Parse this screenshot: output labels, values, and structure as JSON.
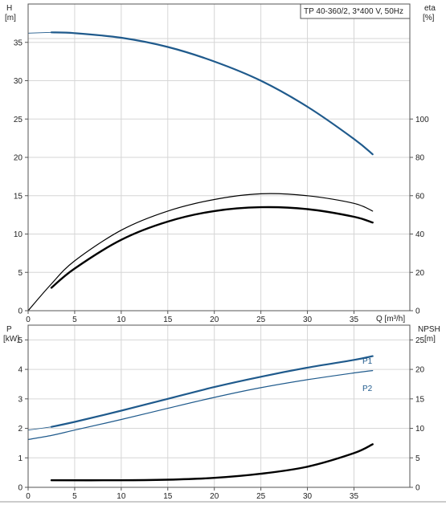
{
  "colors": {
    "blue": "#1f5a8c",
    "black": "#000000",
    "grid": "#d6d6d6",
    "frame": "#555555"
  },
  "title_box": "TP 40-360/2, 3*400 V, 50Hz",
  "chart_data": [
    {
      "type": "line",
      "panel": "top",
      "x_axis": {
        "label": "Q [m³/h]",
        "range": [
          0,
          41
        ],
        "ticks": [
          0,
          5,
          10,
          15,
          20,
          25,
          30,
          35
        ]
      },
      "left_axis": {
        "label_top": "H",
        "label_unit": "[m]",
        "range": [
          0,
          40
        ],
        "ticks": [
          0,
          5,
          10,
          15,
          20,
          25,
          30,
          35
        ]
      },
      "right_axis": {
        "label_top": "eta",
        "label_unit": "[%]",
        "range": [
          0,
          160
        ],
        "ticks": [
          0,
          20,
          40,
          60,
          80,
          100
        ]
      },
      "grid": true,
      "series": [
        {
          "color": "#1f5a8c",
          "width": 2.2,
          "axis": "left",
          "points": [
            [
              2.5,
              36.3
            ],
            [
              5,
              36.2
            ],
            [
              10,
              35.6
            ],
            [
              15,
              34.4
            ],
            [
              20,
              32.5
            ],
            [
              25,
              30.0
            ],
            [
              30,
              26.6
            ],
            [
              35,
              22.4
            ],
            [
              37,
              20.4
            ]
          ]
        },
        {
          "color": "#1f5a8c",
          "width": 0.8,
          "axis": "left",
          "points": [
            [
              0,
              36.2
            ],
            [
              2.5,
              36.3
            ]
          ]
        },
        {
          "color": "#000000",
          "width": 1.2,
          "axis": "right",
          "points": [
            [
              0,
              0
            ],
            [
              2.5,
              14
            ],
            [
              5,
              26
            ],
            [
              10,
              42
            ],
            [
              15,
              52
            ],
            [
              20,
              58
            ],
            [
              25,
              61
            ],
            [
              30,
              60
            ],
            [
              35,
              56
            ],
            [
              37,
              52
            ]
          ]
        },
        {
          "color": "#000000",
          "width": 2.4,
          "axis": "right",
          "points": [
            [
              2.5,
              12
            ],
            [
              5,
              22
            ],
            [
              10,
              37
            ],
            [
              15,
              46.5
            ],
            [
              20,
              52
            ],
            [
              25,
              54
            ],
            [
              30,
              53
            ],
            [
              35,
              49
            ],
            [
              37,
              46
            ]
          ]
        }
      ]
    },
    {
      "type": "line",
      "panel": "bottom",
      "x_axis": {
        "range": [
          0,
          41
        ],
        "ticks": [
          0,
          5,
          10,
          15,
          20,
          25,
          30,
          35
        ]
      },
      "left_axis": {
        "label_top": "P",
        "label_unit": "[kW]",
        "range": [
          0,
          5.5
        ],
        "ticks": [
          0,
          1,
          2,
          3,
          4,
          5
        ]
      },
      "right_axis": {
        "label_top": "NPSH",
        "label_unit": "[m]",
        "range": [
          0,
          27.5
        ],
        "ticks": [
          0,
          5,
          10,
          15,
          20,
          25
        ]
      },
      "grid": true,
      "series": [
        {
          "name": "P1",
          "color": "#1f5a8c",
          "width": 2.2,
          "axis": "left",
          "points": [
            [
              2.5,
              2.05
            ],
            [
              5,
              2.22
            ],
            [
              10,
              2.6
            ],
            [
              15,
              3.0
            ],
            [
              20,
              3.4
            ],
            [
              25,
              3.75
            ],
            [
              30,
              4.06
            ],
            [
              35,
              4.32
            ],
            [
              37,
              4.45
            ]
          ]
        },
        {
          "color": "#1f5a8c",
          "width": 0.8,
          "axis": "left",
          "points": [
            [
              0,
              1.94
            ],
            [
              2.5,
              2.05
            ]
          ]
        },
        {
          "name": "P2",
          "color": "#1f5a8c",
          "width": 1.2,
          "axis": "left",
          "points": [
            [
              0,
              1.62
            ],
            [
              2.5,
              1.76
            ],
            [
              5,
              1.94
            ],
            [
              10,
              2.3
            ],
            [
              15,
              2.68
            ],
            [
              20,
              3.05
            ],
            [
              25,
              3.38
            ],
            [
              30,
              3.65
            ],
            [
              35,
              3.88
            ],
            [
              37,
              3.96
            ]
          ]
        },
        {
          "color": "#000000",
          "width": 2.4,
          "axis": "right",
          "points": [
            [
              2.5,
              1.2
            ],
            [
              10,
              1.2
            ],
            [
              15,
              1.3
            ],
            [
              20,
              1.6
            ],
            [
              25,
              2.3
            ],
            [
              30,
              3.5
            ],
            [
              35,
              5.8
            ],
            [
              37,
              7.3
            ]
          ]
        }
      ]
    }
  ]
}
